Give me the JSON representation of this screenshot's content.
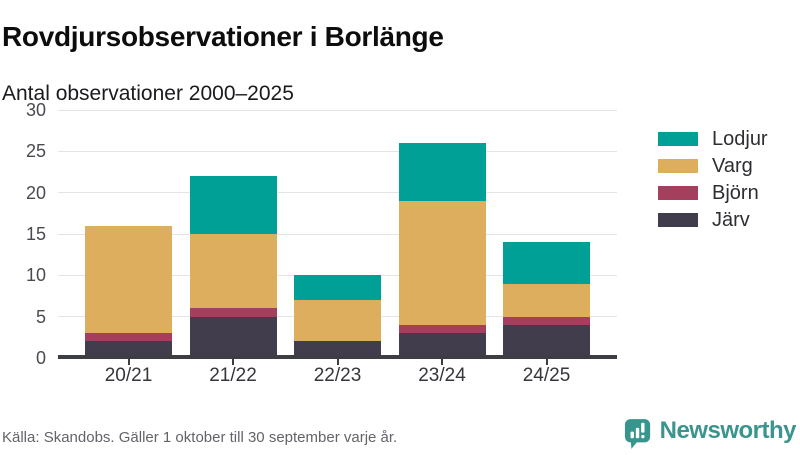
{
  "header": {
    "title": "Rovdjursobservationer i Borlänge",
    "subtitle": "Antal observationer 2000–2025"
  },
  "chart_data": {
    "type": "bar",
    "stacked": true,
    "categories": [
      "20/21",
      "21/22",
      "22/23",
      "23/24",
      "24/25"
    ],
    "series": [
      {
        "name": "Järv",
        "color": "#413d4c",
        "values": [
          2,
          5,
          2,
          3,
          4
        ]
      },
      {
        "name": "Björn",
        "color": "#a43f5d",
        "values": [
          1,
          1,
          0,
          1,
          1
        ]
      },
      {
        "name": "Varg",
        "color": "#dcae5d",
        "values": [
          13,
          9,
          5,
          15,
          4
        ]
      },
      {
        "name": "Lodjur",
        "color": "#00a096",
        "values": [
          0,
          7,
          3,
          7,
          5
        ]
      }
    ],
    "stack_totals": [
      16,
      22,
      10,
      26,
      14
    ],
    "title": "Rovdjursobservationer i Borlänge",
    "subtitle": "Antal observationer 2000–2025",
    "xlabel": "",
    "ylabel": "",
    "ylim": [
      0,
      30
    ],
    "yticks": [
      0,
      5,
      10,
      15,
      20,
      25,
      30
    ],
    "grid": "horizontal",
    "legend": {
      "position": "right",
      "order": [
        "Lodjur",
        "Varg",
        "Björn",
        "Järv"
      ]
    }
  },
  "footer": {
    "source": "Källa: Skandobs. Gäller 1 oktober till 30 september varje år.",
    "brand": "Newsworthy"
  },
  "colors": {
    "grid": "#e4e4e4",
    "axis": "#3d3d44",
    "logo_teal": "#3b948e"
  }
}
